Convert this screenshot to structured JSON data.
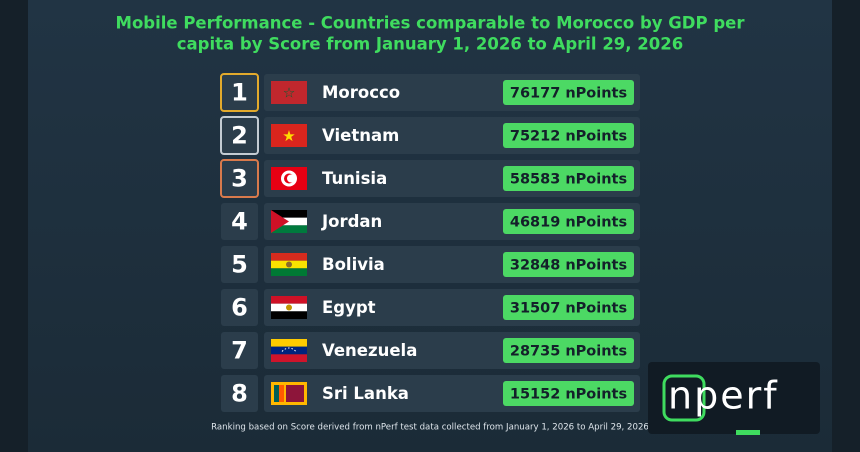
{
  "title": [
    "Mobile Performance - Countries comparable to Morocco by GDP per",
    "capita by Score from January 1, 2026 to April 29, 2026"
  ],
  "rows": [
    {
      "rank": "1",
      "country": "Morocco",
      "score": "76177 nPoints"
    },
    {
      "rank": "2",
      "country": "Vietnam",
      "score": "75212 nPoints"
    },
    {
      "rank": "3",
      "country": "Tunisia",
      "score": "58583 nPoints"
    },
    {
      "rank": "4",
      "country": "Jordan",
      "score": "46819 nPoints"
    },
    {
      "rank": "5",
      "country": "Bolivia",
      "score": "32848 nPoints"
    },
    {
      "rank": "6",
      "country": "Egypt",
      "score": "31507 nPoints"
    },
    {
      "rank": "7",
      "country": "Venezuela",
      "score": "28735 nPoints"
    },
    {
      "rank": "8",
      "country": "Sri Lanka",
      "score": "15152 nPoints"
    }
  ],
  "footnote": "Ranking based on Score derived from nPerf test data collected from January 1, 2026 to April 29, 2026",
  "logo": "nperf"
}
